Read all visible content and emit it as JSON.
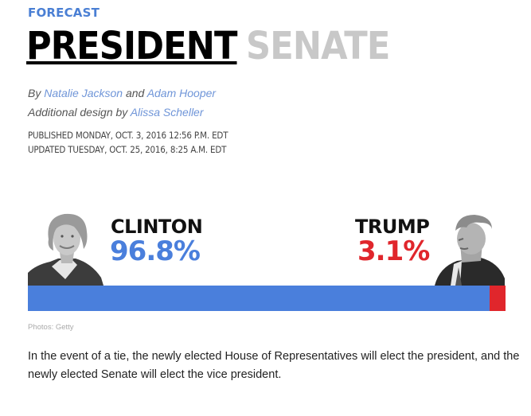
{
  "kicker": "FORECAST",
  "tabs": [
    {
      "label": "PRESIDENT",
      "active": true
    },
    {
      "label": "SENATE",
      "active": false
    }
  ],
  "byline": {
    "prefix": "By",
    "author1": "Natalie Jackson",
    "conj": "and",
    "author2": "Adam Hooper",
    "design_prefix": "Additional design by",
    "designer": "Alissa Scheller"
  },
  "dates": {
    "published": "PUBLISHED MONDAY, OCT. 3, 2016 12:56 P.M. EDT",
    "updated": "UPDATED TUESDAY, OCT. 25, 2016, 8:25 A.M. EDT"
  },
  "candidates": [
    {
      "name": "CLINTON",
      "pct_label": "96.8%",
      "pct": 96.8,
      "color": "#4a7fdc",
      "photo_icon": "clinton-portrait-icon"
    },
    {
      "name": "TRUMP",
      "pct_label": "3.1%",
      "pct": 3.1,
      "color": "#e0262c",
      "photo_icon": "trump-portrait-icon"
    }
  ],
  "photo_credit": "Photos: Getty",
  "note": "In the event of a tie, the newly elected House of Representatives will elect the president, and the newly elected Senate will elect the vice president."
}
